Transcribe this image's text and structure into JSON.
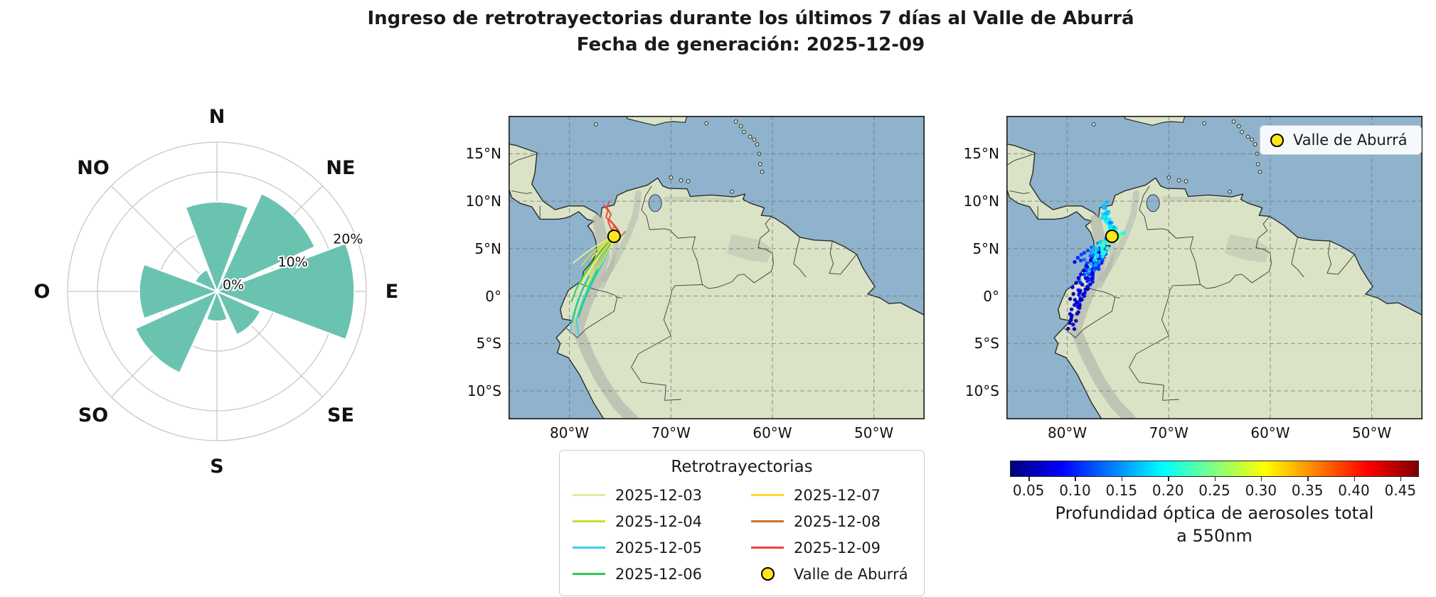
{
  "title": {
    "line1": "Ingreso de retrotrayectorias durante los últimos 7 días al Valle de Aburrá",
    "line2": "Fecha de generación: 2025-12-09"
  },
  "chart_data": {
    "type": [
      "windrose",
      "line-map",
      "scatter-map"
    ],
    "wind_rose": {
      "directions": [
        "N",
        "NE",
        "E",
        "SE",
        "S",
        "SO",
        "O",
        "NO"
      ],
      "values_pct": [
        15,
        18,
        23,
        8,
        5,
        15,
        13,
        4
      ],
      "rings_pct": [
        10,
        20
      ],
      "ring_labels": [
        "0%",
        "10%",
        "20%"
      ],
      "ring_label_radii_pct": [
        0,
        10,
        20
      ],
      "rmax_pct": 25,
      "petal_color": "#6ac3b0"
    },
    "map": {
      "extent": {
        "lon_min": -86,
        "lon_max": -45,
        "lat_min": -13,
        "lat_max": 19
      },
      "x_ticks": [
        {
          "lon": -80,
          "label": "80°W"
        },
        {
          "lon": -70,
          "label": "70°W"
        },
        {
          "lon": -60,
          "label": "60°W"
        },
        {
          "lon": -50,
          "label": "50°W"
        }
      ],
      "y_ticks": [
        {
          "lat": 15,
          "label": "15°N"
        },
        {
          "lat": 10,
          "label": "10°N"
        },
        {
          "lat": 5,
          "label": "5°N"
        },
        {
          "lat": 0,
          "label": "0°"
        },
        {
          "lat": -5,
          "label": "5°S"
        },
        {
          "lat": -10,
          "label": "10°S"
        }
      ],
      "ocean_color": "#8fb3cc",
      "land_color": "#dbe3c6",
      "marker": {
        "lon": -75.6,
        "lat": 6.3,
        "label": "Valle de Aburrá",
        "fill": "#ffe81a",
        "edge": "#000000"
      }
    },
    "trajectories": {
      "legend_title": "Retrotrayectorias",
      "series": [
        {
          "date": "2025-12-03",
          "color": "#d9f0a0",
          "aod_near": 0.18,
          "aod_far": 0.08,
          "paths": [
            [
              [
                -75.6,
                6.3
              ],
              [
                -76.7,
                5.7
              ],
              [
                -77.8,
                5.0
              ],
              [
                -78.8,
                4.2
              ],
              [
                -79.6,
                3.5
              ]
            ],
            [
              [
                -75.6,
                6.3
              ],
              [
                -76.3,
                5.3
              ],
              [
                -77.1,
                4.3
              ],
              [
                -77.9,
                3.3
              ],
              [
                -78.5,
                2.5
              ]
            ]
          ]
        },
        {
          "date": "2025-12-04",
          "color": "#c9e032",
          "aod_near": 0.22,
          "aod_far": 0.1,
          "paths": [
            [
              [
                -75.6,
                6.3
              ],
              [
                -76.5,
                5.2
              ],
              [
                -77.4,
                4.0
              ],
              [
                -78.2,
                2.7
              ],
              [
                -78.9,
                1.4
              ]
            ],
            [
              [
                -75.6,
                6.3
              ],
              [
                -76.2,
                5.0
              ],
              [
                -76.9,
                3.7
              ],
              [
                -77.6,
                2.4
              ],
              [
                -78.2,
                1.1
              ]
            ],
            [
              [
                -75.6,
                6.3
              ],
              [
                -76.8,
                5.4
              ],
              [
                -77.9,
                4.4
              ],
              [
                -78.8,
                3.2
              ]
            ]
          ]
        },
        {
          "date": "2025-12-05",
          "color": "#35d2f2",
          "aod_near": 0.15,
          "aod_far": 0.05,
          "paths": [
            [
              [
                -75.6,
                6.3
              ],
              [
                -76.4,
                4.6
              ],
              [
                -77.3,
                2.8
              ],
              [
                -78.1,
                1.0
              ],
              [
                -78.8,
                -0.8
              ],
              [
                -79.3,
                -2.6
              ],
              [
                -79.1,
                -4.2
              ]
            ],
            [
              [
                -75.6,
                6.3
              ],
              [
                -76.6,
                4.8
              ],
              [
                -77.6,
                3.1
              ],
              [
                -78.5,
                1.3
              ],
              [
                -79.2,
                -0.5
              ],
              [
                -79.7,
                -2.3
              ],
              [
                -79.9,
                -3.9
              ]
            ],
            [
              [
                -75.6,
                6.3
              ],
              [
                -76.1,
                4.9
              ],
              [
                -76.8,
                3.3
              ],
              [
                -77.6,
                1.7
              ],
              [
                -78.3,
                0.1
              ],
              [
                -78.9,
                -1.5
              ]
            ]
          ]
        },
        {
          "date": "2025-12-06",
          "color": "#2ecc52",
          "aod_near": 0.09,
          "aod_far": 0.05,
          "paths": [
            [
              [
                -75.6,
                6.3
              ],
              [
                -76.5,
                4.9
              ],
              [
                -77.4,
                3.4
              ],
              [
                -78.2,
                1.8
              ],
              [
                -78.9,
                0.2
              ],
              [
                -79.4,
                -1.4
              ],
              [
                -79.7,
                -2.8
              ]
            ],
            [
              [
                -75.6,
                6.3
              ],
              [
                -76.3,
                4.7
              ],
              [
                -77.1,
                3.0
              ],
              [
                -77.9,
                1.2
              ],
              [
                -78.6,
                -0.6
              ],
              [
                -79.1,
                -2.2
              ]
            ],
            [
              [
                -75.6,
                6.3
              ],
              [
                -76.7,
                5.0
              ],
              [
                -77.7,
                3.6
              ],
              [
                -78.6,
                2.2
              ],
              [
                -79.3,
                0.8
              ],
              [
                -79.8,
                -0.6
              ]
            ]
          ]
        },
        {
          "date": "2025-12-07",
          "color": "#ffd92e",
          "aod_near": 0.27,
          "aod_far": 0.13,
          "paths": [
            [
              [
                -75.6,
                6.3
              ],
              [
                -76.2,
                5.4
              ],
              [
                -76.9,
                4.4
              ],
              [
                -77.5,
                3.3
              ],
              [
                -78.0,
                2.2
              ]
            ],
            [
              [
                -75.6,
                6.3
              ],
              [
                -76.0,
                5.2
              ],
              [
                -76.6,
                4.0
              ],
              [
                -77.2,
                2.9
              ]
            ],
            [
              [
                -75.6,
                6.3
              ],
              [
                -76.4,
                5.6
              ],
              [
                -77.1,
                4.8
              ],
              [
                -77.8,
                4.0
              ]
            ]
          ]
        },
        {
          "date": "2025-12-08",
          "color": "#cf7030",
          "aod_near": 0.3,
          "aod_far": 0.2,
          "paths": [
            [
              [
                -75.6,
                6.3
              ],
              [
                -75.2,
                6.1
              ],
              [
                -74.8,
                6.4
              ],
              [
                -74.5,
                6.8
              ]
            ],
            [
              [
                -75.6,
                6.3
              ],
              [
                -75.9,
                6.8
              ],
              [
                -75.6,
                7.3
              ],
              [
                -75.2,
                7.0
              ]
            ]
          ]
        },
        {
          "date": "2025-12-09",
          "color": "#f04438",
          "aod_near": 0.22,
          "aod_far": 0.15,
          "paths": [
            [
              [
                -75.6,
                6.3
              ],
              [
                -75.9,
                7.1
              ],
              [
                -76.2,
                7.9
              ],
              [
                -75.9,
                8.6
              ],
              [
                -76.3,
                9.3
              ],
              [
                -76.1,
                9.9
              ]
            ],
            [
              [
                -75.6,
                6.3
              ],
              [
                -75.3,
                7.0
              ],
              [
                -75.8,
                7.7
              ],
              [
                -76.4,
                8.3
              ],
              [
                -76.2,
                9.0
              ],
              [
                -76.6,
                9.6
              ]
            ],
            [
              [
                -75.6,
                6.3
              ],
              [
                -75.1,
                6.8
              ],
              [
                -75.5,
                7.4
              ],
              [
                -76.0,
                8.0
              ]
            ]
          ]
        }
      ]
    },
    "aod_colorbar": {
      "vmin": 0.03,
      "vmax": 0.47,
      "tick_values": [
        0.05,
        0.1,
        0.15,
        0.2,
        0.25,
        0.3,
        0.35,
        0.4,
        0.45
      ],
      "tick_labels": [
        "0.05",
        "0.10",
        "0.15",
        "0.20",
        "0.25",
        "0.30",
        "0.35",
        "0.40",
        "0.45"
      ],
      "label_line1": "Profundidad óptica de aerosoles total",
      "label_line2": "a 550nm"
    }
  }
}
